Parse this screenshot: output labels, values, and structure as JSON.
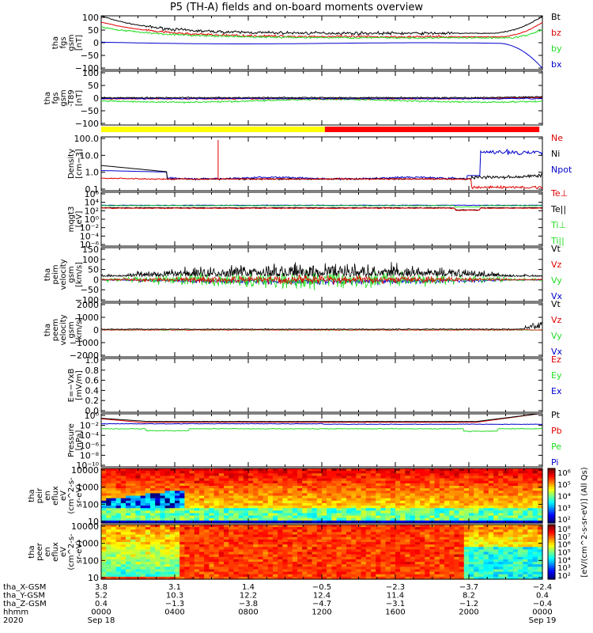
{
  "title": "P5 (TH-A) fields and on-board moments overview",
  "colors": {
    "black": "#000000",
    "red": "#e00000",
    "green": "#22dd22",
    "blue": "#0000cc",
    "yellow": "#ffff00",
    "barRed": "#ff0000"
  },
  "chart_data": [
    {
      "id": "p1",
      "type": "line",
      "ylabel": [
        "tha",
        "fgs",
        "gsm",
        "[nT]"
      ],
      "yticks": [
        "100",
        "50",
        "0",
        "−50",
        "−100"
      ],
      "ylim": [
        -100,
        100
      ],
      "legend": [
        {
          "label": "Bt",
          "color": "black"
        },
        {
          "label": "bz",
          "color": "red"
        },
        {
          "label": "by",
          "color": "green"
        },
        {
          "label": "bx",
          "color": "blue"
        }
      ]
    },
    {
      "id": "p2",
      "type": "line",
      "ylabel": [
        "tha",
        "fgs",
        "gsm",
        "-T89",
        "[nT]"
      ],
      "yticks": [
        "100",
        "50",
        "0",
        "−50",
        "−100"
      ],
      "ylim": [
        -120,
        120
      ],
      "legend": []
    },
    {
      "id": "bar",
      "type": "mode-bar",
      "segments": [
        {
          "from": "0000",
          "to": "1210",
          "color": "yellow"
        },
        {
          "from": "1210",
          "to": "2350",
          "color": "red"
        }
      ]
    },
    {
      "id": "p3",
      "type": "line",
      "scale": "log",
      "ylabel": [
        "Density",
        "[cm−3]"
      ],
      "yticks": [
        "100.0",
        "10.0",
        "1.0",
        "0.1"
      ],
      "legend": [
        {
          "label": "Ne",
          "color": "red"
        },
        {
          "label": "Ni",
          "color": "black"
        },
        {
          "label": "Npot",
          "color": "blue"
        }
      ]
    },
    {
      "id": "p4",
      "type": "line",
      "scale": "log",
      "ylabel": [
        "mqgt3",
        "[eV]"
      ],
      "yticks": [
        "10⁶",
        "10⁴",
        "10²",
        "10⁰",
        "10⁻²",
        "10⁻⁴",
        "10⁻⁶"
      ],
      "legend": [
        {
          "label": "Te⊥",
          "color": "red"
        },
        {
          "label": "Te||",
          "color": "black"
        },
        {
          "label": "Ti⊥",
          "color": "green"
        },
        {
          "label": "Ti||",
          "color": "green"
        }
      ]
    },
    {
      "id": "p5",
      "type": "line",
      "ylabel": [
        "tha",
        "peim",
        "velocity",
        "gsm",
        "[km/s]"
      ],
      "yticks": [
        "150",
        "100",
        "50",
        "0",
        "−50",
        "−100"
      ],
      "legend": [
        {
          "label": "Vt",
          "color": "black"
        },
        {
          "label": "Vz",
          "color": "red"
        },
        {
          "label": "Vy",
          "color": "green"
        },
        {
          "label": "Vx",
          "color": "blue"
        }
      ]
    },
    {
      "id": "p6",
      "type": "line",
      "ylabel": [
        "tha",
        "peem",
        "velocity",
        "gsm",
        "[km/s]"
      ],
      "yticks": [
        "2000",
        "1000",
        "0",
        "−1000",
        "−2000"
      ],
      "legend": [
        {
          "label": "Vt",
          "color": "black"
        },
        {
          "label": "Vz",
          "color": "red"
        },
        {
          "label": "Vy",
          "color": "green"
        },
        {
          "label": "Vx",
          "color": "blue"
        }
      ]
    },
    {
      "id": "p7",
      "type": "line",
      "ylabel": [
        "E=−VxB",
        "[mV/m]"
      ],
      "yticks": [
        "1.0",
        "0.8",
        "0.6",
        "0.4",
        "0.2",
        "0.0"
      ],
      "legend": [
        {
          "label": "Ez",
          "color": "red"
        },
        {
          "label": "Ey",
          "color": "green"
        },
        {
          "label": "Ex",
          "color": "blue"
        }
      ]
    },
    {
      "id": "p8",
      "type": "line",
      "scale": "log",
      "ylabel": [
        "Pressure",
        "[nPa]"
      ],
      "yticks": [
        "10⁰",
        "10⁻²",
        "10⁻⁴",
        "10⁻⁶",
        "10⁻⁸",
        "10⁻¹⁰"
      ],
      "legend": [
        {
          "label": "Pt",
          "color": "black"
        },
        {
          "label": "Pb",
          "color": "red"
        },
        {
          "label": "Pe",
          "color": "green"
        },
        {
          "label": "Pi",
          "color": "blue"
        }
      ]
    },
    {
      "id": "s1",
      "type": "heatmap",
      "scale": "log",
      "ylabel": [
        "tha",
        "peir",
        "en",
        "eflux",
        "eV",
        "(cm^2-s-",
        "sr-eV)"
      ],
      "yticks": [
        "10000",
        "1000",
        "100",
        "10"
      ],
      "colorbar": {
        "ticks": [
          "10⁶",
          "10⁵",
          "10⁴",
          "10³",
          "10²"
        ]
      }
    },
    {
      "id": "s2",
      "type": "heatmap",
      "scale": "log",
      "ylabel": [
        "tha",
        "peer",
        "en",
        "eflux",
        "eV",
        "(cm^2-s-",
        "sr-eV)"
      ],
      "yticks": [
        "10000",
        "1000",
        "100",
        "10"
      ],
      "colorbar": {
        "ticks": [
          "10⁸",
          "10⁷",
          "10⁶",
          "10⁵",
          "10⁴",
          "10³",
          "10²"
        ]
      }
    }
  ],
  "colorbar_label": "[eV/(cm^2-s-sr-eV)] (All Qs)",
  "xaxis": {
    "rows": [
      {
        "label": "tha_X-GSM",
        "values": [
          "3.8",
          "3.1",
          "1.4",
          "−0.5",
          "−2.3",
          "−3.7",
          "−2.4"
        ]
      },
      {
        "label": "tha_Y-GSM",
        "values": [
          "5.2",
          "10.3",
          "12.2",
          "12.4",
          "11.4",
          "8.2",
          "0.4"
        ]
      },
      {
        "label": "tha_Z-GSM",
        "values": [
          "0.4",
          "−1.3",
          "−3.8",
          "−4.7",
          "−3.1",
          "−1.2",
          "−0.4"
        ]
      },
      {
        "label": "hhmm",
        "values": [
          "0000",
          "0400",
          "0800",
          "1200",
          "1600",
          "2000",
          "0000"
        ]
      },
      {
        "label": "2020",
        "values": [
          "Sep 18",
          "",
          "",
          "",
          "",
          "",
          "Sep 19"
        ]
      }
    ]
  }
}
